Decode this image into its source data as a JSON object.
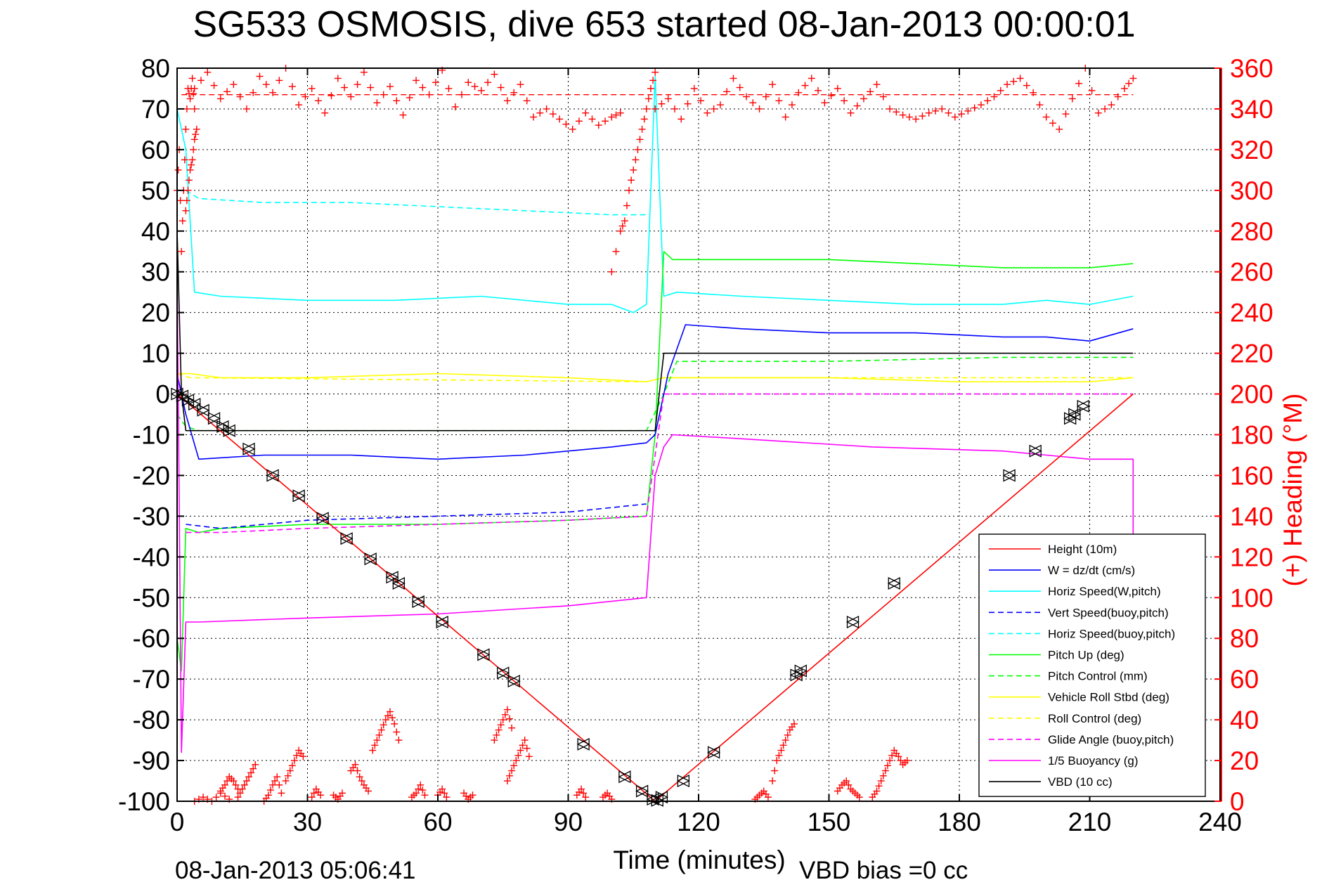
{
  "chart_data": {
    "type": "line",
    "title": "SG533 OSMOSIS, dive 653 started 08-Jan-2013 00:00:01",
    "xlabel": "Time (minutes)",
    "ylabel_right": "(+) Heading (°M)",
    "footer_left": "08-Jan-2013 05:06:41",
    "footer_right": "VBD bias =0 cc",
    "xlim": [
      0,
      240
    ],
    "ylim": [
      -100,
      80
    ],
    "y2lim": [
      0,
      360
    ],
    "grid": true,
    "legend_position": "bottom-right",
    "x_ticks": [
      "0",
      "30",
      "60",
      "90",
      "120",
      "150",
      "180",
      "210",
      "240"
    ],
    "y_ticks": [
      "80",
      "70",
      "60",
      "50",
      "40",
      "30",
      "20",
      "10",
      "0",
      "-10",
      "-20",
      "-30",
      "-40",
      "-50",
      "-60",
      "-70",
      "-80",
      "-90",
      "-100"
    ],
    "y2_ticks": [
      "360",
      "340",
      "320",
      "300",
      "280",
      "260",
      "240",
      "220",
      "200",
      "180",
      "160",
      "140",
      "120",
      "100",
      "80",
      "60",
      "40",
      "20",
      "0"
    ],
    "colors": {
      "red": "#ff0000",
      "blue": "#0000ff",
      "cyan": "#00ffff",
      "green": "#00ff00",
      "yellow": "#ffff00",
      "magenta": "#ff00ff",
      "black": "#000000"
    },
    "series": [
      {
        "name": "Height (10m)",
        "color": "#ff0000",
        "dash": false,
        "x": [
          0,
          110,
          220
        ],
        "y": [
          0,
          -100,
          0
        ]
      },
      {
        "name": "W = dz/dt (cm/s)",
        "color": "#0000ff",
        "dash": false,
        "x": [
          0,
          2,
          5,
          20,
          40,
          60,
          80,
          100,
          108,
          110,
          113,
          117,
          130,
          150,
          170,
          190,
          200,
          210,
          220
        ],
        "y": [
          5,
          -5,
          -16,
          -15,
          -15,
          -16,
          -15,
          -13,
          -12,
          -10,
          5,
          17,
          16,
          15,
          15,
          14,
          14,
          13,
          16
        ]
      },
      {
        "name": "Horiz Speed(W,pitch)",
        "color": "#00ffff",
        "dash": false,
        "x": [
          0,
          2,
          4,
          10,
          30,
          50,
          70,
          90,
          100,
          105,
          108,
          110,
          112,
          115,
          130,
          150,
          170,
          190,
          200,
          210,
          220
        ],
        "y": [
          70,
          60,
          25,
          24,
          23,
          23,
          24,
          22,
          22,
          20,
          22,
          78,
          24,
          25,
          24,
          23,
          22,
          22,
          23,
          22,
          24
        ]
      },
      {
        "name": "Vert Speed(buoy,pitch)",
        "color": "#0000ff",
        "dash": true,
        "x": [
          2,
          10,
          30,
          60,
          90,
          108
        ],
        "y": [
          -32,
          -33,
          -31,
          -30,
          -29,
          -27
        ]
      },
      {
        "name": "Horiz Speed(buoy,pitch)",
        "color": "#00ffff",
        "dash": true,
        "x": [
          2,
          5,
          20,
          40,
          60,
          80,
          100,
          105,
          108
        ],
        "y": [
          50,
          48,
          47,
          47,
          46,
          45,
          44,
          44,
          44
        ]
      },
      {
        "name": "Pitch Up (deg)",
        "color": "#00ff00",
        "dash": false,
        "x": [
          0,
          1,
          2,
          5,
          10,
          30,
          60,
          90,
          108,
          110,
          112,
          114,
          130,
          150,
          170,
          190,
          210,
          220
        ],
        "y": [
          -60,
          -68,
          -33,
          -34,
          -33,
          -32,
          -32,
          -31,
          -30,
          -10,
          35,
          33,
          33,
          33,
          32,
          31,
          31,
          32
        ]
      },
      {
        "name": "Pitch Control (mm)",
        "color": "#00ff00",
        "dash": true,
        "x": [
          0,
          2,
          5,
          60,
          108,
          112,
          115,
          150,
          190,
          220
        ],
        "y": [
          -5,
          -8,
          -9,
          -9,
          -9,
          0,
          8,
          8,
          9,
          9
        ]
      },
      {
        "name": "Vehicle Roll Stbd (deg)",
        "color": "#ffff00",
        "dash": false,
        "x": [
          0,
          3,
          10,
          30,
          60,
          90,
          108,
          112,
          120,
          150,
          180,
          210,
          220
        ],
        "y": [
          5,
          5,
          4,
          4,
          5,
          4,
          3,
          4,
          4,
          4,
          3,
          3,
          4
        ]
      },
      {
        "name": "Roll Control (deg)",
        "color": "#ffff00",
        "dash": true,
        "x": [
          0,
          3,
          108,
          112,
          220
        ],
        "y": [
          5,
          4,
          3,
          4,
          4
        ]
      },
      {
        "name": "Glide Angle (buoy,pitch)",
        "color": "#ff00ff",
        "dash": true,
        "x": [
          2,
          10,
          30,
          60,
          90,
          108,
          112,
          220
        ],
        "y": [
          -34,
          -34,
          -33,
          -32,
          -31,
          -30,
          0,
          0
        ]
      },
      {
        "name": "1/5 Buoyancy (g)",
        "color": "#ff00ff",
        "dash": false,
        "x": [
          0,
          1,
          2,
          5,
          30,
          60,
          90,
          108,
          110,
          112,
          114,
          130,
          160,
          190,
          200,
          210,
          220,
          220
        ],
        "y": [
          30,
          -88,
          -56,
          -56,
          -55,
          -54,
          -52,
          -50,
          -20,
          -13,
          -10,
          -11,
          -13,
          -14,
          -15,
          -16,
          -16,
          -38
        ]
      },
      {
        "name": "VBD (10 cc)",
        "color": "#000000",
        "dash": false,
        "x": [
          0,
          1,
          2,
          110,
          112,
          220
        ],
        "y": [
          40,
          0,
          -9,
          -9,
          10,
          10
        ]
      }
    ],
    "height_markers": [
      {
        "x": 0,
        "y": 0
      },
      {
        "x": 1.2,
        "y": -0.5
      },
      {
        "x": 2.5,
        "y": -1.5
      },
      {
        "x": 4,
        "y": -2.5
      },
      {
        "x": 6,
        "y": -4
      },
      {
        "x": 8.5,
        "y": -6
      },
      {
        "x": 10.5,
        "y": -8
      },
      {
        "x": 12,
        "y": -9
      },
      {
        "x": 16.5,
        "y": -13.5
      },
      {
        "x": 22,
        "y": -20
      },
      {
        "x": 28,
        "y": -25
      },
      {
        "x": 33.5,
        "y": -30.5
      },
      {
        "x": 39,
        "y": -35.5
      },
      {
        "x": 44.5,
        "y": -40.5
      },
      {
        "x": 49.5,
        "y": -45
      },
      {
        "x": 51,
        "y": -46.5
      },
      {
        "x": 55.5,
        "y": -51
      },
      {
        "x": 61,
        "y": -56
      },
      {
        "x": 70.5,
        "y": -64
      },
      {
        "x": 75,
        "y": -68.5
      },
      {
        "x": 77.5,
        "y": -70.5
      },
      {
        "x": 93.5,
        "y": -86
      },
      {
        "x": 103,
        "y": -94
      },
      {
        "x": 107,
        "y": -97.5
      },
      {
        "x": 109.5,
        "y": -99.5
      },
      {
        "x": 110.5,
        "y": -99.8
      },
      {
        "x": 111.5,
        "y": -99
      },
      {
        "x": 116.5,
        "y": -95
      },
      {
        "x": 123.5,
        "y": -88
      },
      {
        "x": 142.5,
        "y": -69
      },
      {
        "x": 143.5,
        "y": -68
      },
      {
        "x": 155.5,
        "y": -56
      },
      {
        "x": 165,
        "y": -46.5
      },
      {
        "x": 191.5,
        "y": -20
      },
      {
        "x": 197.5,
        "y": -14
      },
      {
        "x": 205.5,
        "y": -6
      },
      {
        "x": 206.5,
        "y": -5
      },
      {
        "x": 208.5,
        "y": -3
      }
    ],
    "heading_marker": "+",
    "heading_color": "#ff0000",
    "heading_mean": 347,
    "heading_segments": [
      {
        "x": [
          0,
          0.5,
          1,
          1.5,
          2,
          2.5,
          3,
          3.5,
          4
        ],
        "y": [
          300,
          320,
          270,
          300,
          330,
          350,
          345,
          355,
          340
        ]
      },
      {
        "x": [
          2,
          2.5,
          3,
          3.5,
          4,
          4.5
        ],
        "y": [
          290,
          300,
          310,
          315,
          325,
          330
        ]
      },
      {
        "x": [
          4,
          7,
          10,
          13,
          16,
          19,
          22,
          25,
          28,
          31,
          34,
          37,
          40,
          43,
          46,
          49,
          52,
          55,
          58,
          61,
          64,
          67,
          70,
          73,
          76,
          79,
          82,
          85,
          88,
          91,
          94,
          97,
          100,
          102
        ],
        "y": [
          350,
          358,
          345,
          352,
          340,
          356,
          348,
          360,
          342,
          350,
          338,
          355,
          346,
          358,
          343,
          351,
          337,
          354,
          347,
          359,
          341,
          353,
          349,
          357,
          344,
          352,
          336,
          340,
          335,
          330,
          338,
          332,
          336,
          338
        ]
      },
      {
        "x": [
          100,
          102,
          103,
          104,
          105,
          106,
          107,
          108,
          109,
          110
        ],
        "y": [
          260,
          280,
          285,
          300,
          310,
          320,
          330,
          340,
          350,
          358
        ]
      },
      {
        "x": [
          110,
          113,
          116,
          119,
          122,
          125,
          128,
          131,
          134,
          137,
          140,
          143,
          146,
          149,
          152,
          155,
          158,
          161,
          164,
          167,
          170,
          173,
          176,
          179,
          182,
          185,
          188,
          191,
          194,
          197,
          200,
          203,
          206,
          209,
          212,
          215,
          218,
          220
        ],
        "y": [
          340,
          345,
          335,
          350,
          338,
          342,
          355,
          346,
          340,
          352,
          336,
          348,
          355,
          343,
          350,
          338,
          345,
          352,
          340,
          337,
          335,
          338,
          340,
          336,
          339,
          342,
          346,
          352,
          355,
          348,
          336,
          330,
          345,
          360,
          338,
          342,
          350,
          355
        ]
      },
      {
        "x": [
          4,
          6,
          8,
          10,
          12
        ],
        "y": [
          0,
          2,
          0,
          4,
          1
        ]
      },
      {
        "x": [
          10,
          11,
          12,
          13,
          14
        ],
        "y": [
          5,
          8,
          12,
          10,
          6
        ]
      },
      {
        "x": [
          14,
          15,
          16,
          17,
          18
        ],
        "y": [
          2,
          6,
          10,
          14,
          18
        ]
      },
      {
        "x": [
          20,
          21,
          22,
          23,
          24
        ],
        "y": [
          0,
          3,
          8,
          12,
          4
        ]
      },
      {
        "x": [
          25,
          26,
          27,
          28,
          29
        ],
        "y": [
          10,
          15,
          20,
          25,
          22
        ]
      },
      {
        "x": [
          31,
          32,
          33
        ],
        "y": [
          2,
          6,
          3
        ]
      },
      {
        "x": [
          36,
          37,
          38
        ],
        "y": [
          3,
          1,
          4
        ]
      },
      {
        "x": [
          40,
          41,
          42,
          43,
          44
        ],
        "y": [
          15,
          18,
          12,
          8,
          5
        ]
      },
      {
        "x": [
          45,
          46,
          47,
          48,
          49,
          50,
          51
        ],
        "y": [
          25,
          30,
          35,
          40,
          44,
          38,
          30
        ]
      },
      {
        "x": [
          54,
          55,
          56,
          57
        ],
        "y": [
          2,
          4,
          8,
          3
        ]
      },
      {
        "x": [
          60,
          61,
          62
        ],
        "y": [
          3,
          6,
          2
        ]
      },
      {
        "x": [
          66,
          67,
          68
        ],
        "y": [
          4,
          1,
          3
        ]
      },
      {
        "x": [
          73,
          74,
          75,
          76,
          77
        ],
        "y": [
          30,
          35,
          40,
          45,
          36
        ]
      },
      {
        "x": [
          76,
          77,
          78,
          79,
          80,
          81
        ],
        "y": [
          10,
          15,
          20,
          25,
          30,
          22
        ]
      },
      {
        "x": [
          92,
          93,
          94
        ],
        "y": [
          3,
          6,
          2
        ]
      },
      {
        "x": [
          98,
          99,
          100
        ],
        "y": [
          2,
          4,
          1
        ]
      },
      {
        "x": [
          133,
          134,
          135,
          136
        ],
        "y": [
          1,
          3,
          5,
          2
        ]
      },
      {
        "x": [
          137,
          138,
          139,
          140,
          141,
          142
        ],
        "y": [
          10,
          20,
          25,
          30,
          35,
          38
        ]
      },
      {
        "x": [
          152,
          153,
          154,
          155,
          156,
          157
        ],
        "y": [
          5,
          8,
          10,
          6,
          4,
          2
        ]
      },
      {
        "x": [
          160,
          161,
          162,
          163,
          164,
          165,
          166,
          167,
          168
        ],
        "y": [
          2,
          5,
          10,
          15,
          20,
          25,
          22,
          18,
          20
        ]
      }
    ]
  }
}
